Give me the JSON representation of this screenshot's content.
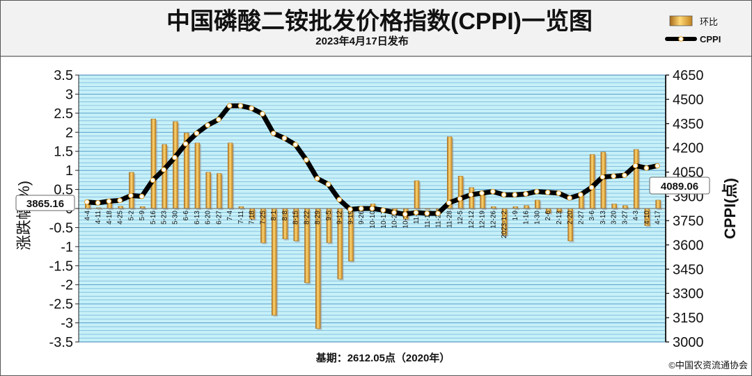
{
  "chart_data": {
    "type": "bar+line",
    "title": "中国磷酸二铵批发价格指数(CPPI)一览图",
    "subtitle": "2023年4月17日发布",
    "footer_base": "基期：2612.05点（2020年）",
    "footer_copyright": "©中国农资流通协会",
    "ylabel_left": "涨跌幅(%)",
    "ylabel_right": "CPPI(点)",
    "ylim_left": [
      -3.5,
      3.5
    ],
    "ylim_right": [
      3000,
      4650
    ],
    "left_ticks": [
      "3.5",
      "3",
      "2.5",
      "2",
      "1.5",
      "1",
      "0.5",
      "0",
      "-0.5",
      "-1",
      "-1.5",
      "-2",
      "-2.5",
      "-3",
      "-3.5"
    ],
    "right_ticks": [
      "4650",
      "4500",
      "4350",
      "4200",
      "4050",
      "3900",
      "3750",
      "3600",
      "3450",
      "3300",
      "3150",
      "3000"
    ],
    "legend": {
      "bar": "环比",
      "line": "CPPI"
    },
    "start_label": "3865.16",
    "end_label": "4089.06",
    "categories": [
      "4-4",
      "4-11",
      "4-18",
      "4-25",
      "5-2",
      "5-9",
      "5-16",
      "5-23",
      "5-30",
      "6-6",
      "6-13",
      "6-20",
      "6-27",
      "7-4",
      "7-11",
      "7-18",
      "7-25",
      "8-1",
      "8-8",
      "8-15",
      "8-22",
      "8-29",
      "9-5",
      "9-12",
      "9-19",
      "9-26",
      "10-10",
      "10-17",
      "10-24",
      "10-31",
      "11-7",
      "11-14",
      "11-21",
      "11-28",
      "12-5",
      "12-12",
      "12-19",
      "12-26",
      "2023-1-2",
      "1-9",
      "1-16",
      "1-30",
      "2-6",
      "2-13",
      "2-20",
      "2-27",
      "3-6",
      "3-13",
      "3-20",
      "3-27",
      "4-3",
      "4-10",
      "4-17"
    ],
    "series": [
      {
        "name": "环比",
        "type": "bar",
        "axis": "left",
        "values": [
          0.15,
          0.02,
          0.18,
          0.06,
          0.95,
          0.05,
          2.35,
          1.68,
          2.28,
          1.98,
          1.72,
          0.95,
          0.92,
          1.72,
          0.05,
          -0.28,
          -0.9,
          -2.8,
          -0.8,
          -0.85,
          -1.95,
          -3.15,
          -0.9,
          -1.85,
          -1.38,
          -0.04,
          0.12,
          -0.03,
          -0.08,
          -0.28,
          0.73,
          -0.02,
          -0.05,
          1.88,
          0.85,
          0.55,
          0.38,
          0.05,
          -0.7,
          0.05,
          0.08,
          0.22,
          -0.12,
          -0.1,
          -0.85,
          0.42,
          1.42,
          1.48,
          0.12,
          0.08,
          1.55,
          -0.45,
          0.22
        ]
      },
      {
        "name": "CPPI",
        "type": "line",
        "axis": "right",
        "values": [
          3865.16,
          3860,
          3870,
          3875,
          3905,
          3900,
          4000,
          4065,
          4140,
          4225,
          4290,
          4340,
          4375,
          4460,
          4460,
          4445,
          4410,
          4290,
          4260,
          4220,
          4125,
          4010,
          3975,
          3880,
          3820,
          3825,
          3825,
          3815,
          3800,
          3790,
          3800,
          3795,
          3795,
          3860,
          3885,
          3910,
          3920,
          3930,
          3910,
          3910,
          3915,
          3930,
          3925,
          3920,
          3890,
          3910,
          3955,
          4020,
          4025,
          4030,
          4090,
          4075,
          4089.06
        ]
      }
    ]
  },
  "colors": {
    "plot_bg": "#c6f0f8",
    "grid": "#3a88c0",
    "bar_light": "#ffd770",
    "bar_dark": "#b07020",
    "bar_shadow": "#9a9a9a",
    "line": "#000000",
    "marker_fill": "#ffffff",
    "marker_dot": "#e8a020",
    "header_bg": "#f2f2f2"
  }
}
